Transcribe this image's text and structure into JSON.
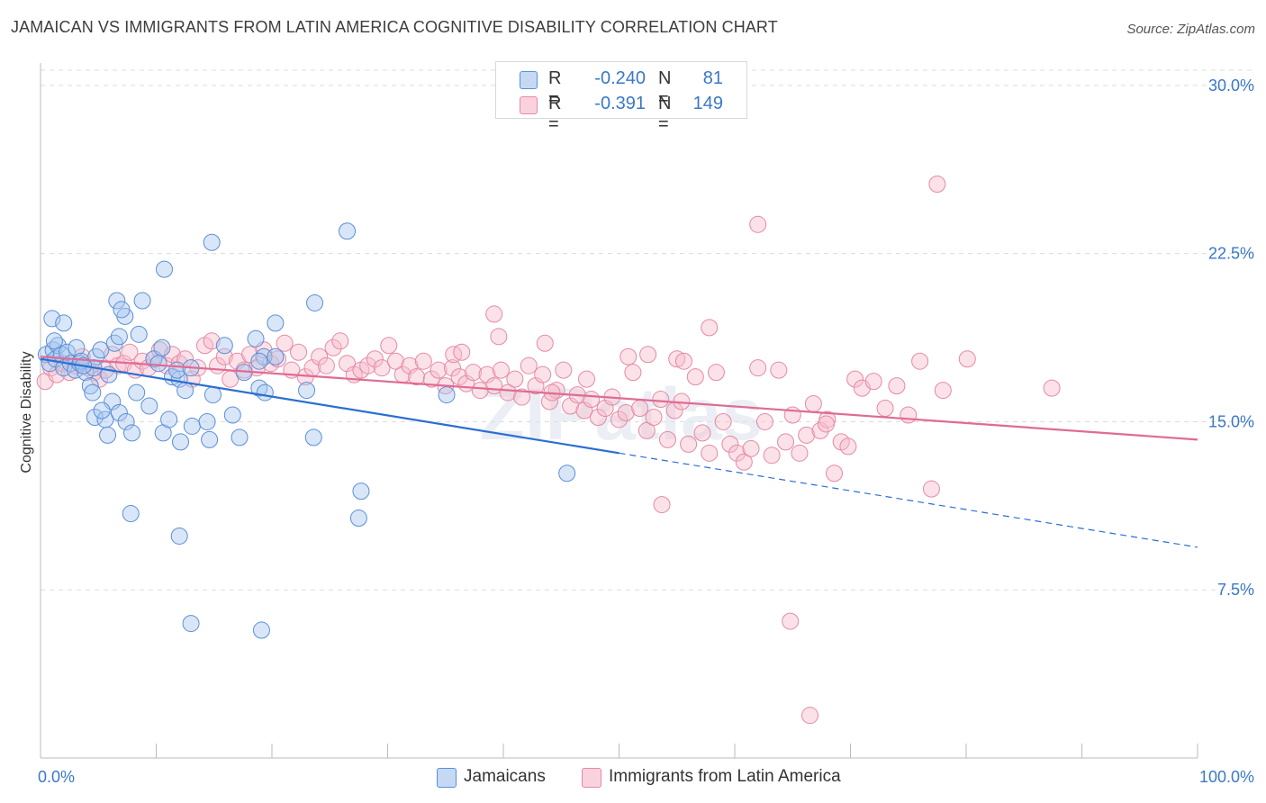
{
  "title": "JAMAICAN VS IMMIGRANTS FROM LATIN AMERICA COGNITIVE DISABILITY CORRELATION CHART",
  "source": "Source: ZipAtlas.com",
  "watermark": "ZIPatlas",
  "legend": {
    "series1": {
      "r_label": "R =",
      "r_value": "-0.240",
      "n_label": "N =",
      "n_value": "81"
    },
    "series2": {
      "r_label": "R =",
      "r_value": "-0.391",
      "n_label": "N =",
      "n_value": "149"
    }
  },
  "bottom_legend": {
    "series1": "Jamaicans",
    "series2": "Immigrants from Latin America"
  },
  "colors": {
    "blue_fill": "#a9c8ef",
    "blue_stroke": "#5b8fd6",
    "blue_line": "#2a6fd1",
    "pink_fill": "#f6bccd",
    "pink_stroke": "#e48aa6",
    "pink_line": "#e06b93",
    "tick": "#3a78c8",
    "grid": "#dcdcdc"
  },
  "chart_data": {
    "type": "scatter",
    "title": "JAMAICAN VS IMMIGRANTS FROM LATIN AMERICA COGNITIVE DISABILITY CORRELATION CHART",
    "xlabel": "",
    "ylabel": "Cognitive Disability",
    "xlim": [
      0,
      100
    ],
    "ylim": [
      0,
      31
    ],
    "x_tick_labels": [
      "0.0%",
      "100.0%"
    ],
    "y_ticks": [
      7.5,
      15.0,
      22.5,
      30.0
    ],
    "y_tick_labels": [
      "7.5%",
      "15.0%",
      "22.5%",
      "30.0%"
    ],
    "series": [
      {
        "name": "Jamaicans",
        "r": -0.24,
        "n": 81,
        "trend": {
          "x0": 0,
          "y0": 17.8,
          "x1": 50,
          "y1": 13.6,
          "dash_x1": 100,
          "dash_y1": 9.4
        },
        "points": [
          [
            0.5,
            18.0
          ],
          [
            0.8,
            17.6
          ],
          [
            1.0,
            19.6
          ],
          [
            1.1,
            18.2
          ],
          [
            1.3,
            17.8
          ],
          [
            1.5,
            18.4
          ],
          [
            1.8,
            18.0
          ],
          [
            2.0,
            17.4
          ],
          [
            2.3,
            18.1
          ],
          [
            2.6,
            17.6
          ],
          [
            2.0,
            19.4
          ],
          [
            1.2,
            18.6
          ],
          [
            3.0,
            17.3
          ],
          [
            3.4,
            17.6
          ],
          [
            3.9,
            17.2
          ],
          [
            4.3,
            16.6
          ],
          [
            4.5,
            16.3
          ],
          [
            4.8,
            17.9
          ],
          [
            5.2,
            18.2
          ],
          [
            4.6,
            17.4
          ],
          [
            5.9,
            17.1
          ],
          [
            3.1,
            18.3
          ],
          [
            3.5,
            17.7
          ],
          [
            6.4,
            18.5
          ],
          [
            6.8,
            18.8
          ],
          [
            7.3,
            19.7
          ],
          [
            6.6,
            20.4
          ],
          [
            7.0,
            20.0
          ],
          [
            8.5,
            18.9
          ],
          [
            8.8,
            20.4
          ],
          [
            6.2,
            15.9
          ],
          [
            4.7,
            15.2
          ],
          [
            5.6,
            15.1
          ],
          [
            5.3,
            15.5
          ],
          [
            5.8,
            14.4
          ],
          [
            6.8,
            15.4
          ],
          [
            7.4,
            15.0
          ],
          [
            7.9,
            14.5
          ],
          [
            8.3,
            16.3
          ],
          [
            9.4,
            15.7
          ],
          [
            9.8,
            17.8
          ],
          [
            10.2,
            17.6
          ],
          [
            10.5,
            18.3
          ],
          [
            11.4,
            17.0
          ],
          [
            12.0,
            16.9
          ],
          [
            11.8,
            17.3
          ],
          [
            12.5,
            16.4
          ],
          [
            13.0,
            17.4
          ],
          [
            10.6,
            14.5
          ],
          [
            11.1,
            15.1
          ],
          [
            12.1,
            14.1
          ],
          [
            13.1,
            14.8
          ],
          [
            14.4,
            15.0
          ],
          [
            14.6,
            14.2
          ],
          [
            14.9,
            16.2
          ],
          [
            15.9,
            18.4
          ],
          [
            16.6,
            15.3
          ],
          [
            17.2,
            14.3
          ],
          [
            17.6,
            17.2
          ],
          [
            18.6,
            18.7
          ],
          [
            18.9,
            16.5
          ],
          [
            19.4,
            16.3
          ],
          [
            19.3,
            17.9
          ],
          [
            20.3,
            19.4
          ],
          [
            20.3,
            17.9
          ],
          [
            23.0,
            16.4
          ],
          [
            23.7,
            20.3
          ],
          [
            23.6,
            14.3
          ],
          [
            26.5,
            23.5
          ],
          [
            27.5,
            10.7
          ],
          [
            27.7,
            11.9
          ],
          [
            35.1,
            16.2
          ],
          [
            45.5,
            12.7
          ],
          [
            14.8,
            23.0
          ],
          [
            10.7,
            21.8
          ],
          [
            7.8,
            10.9
          ],
          [
            12.0,
            9.9
          ],
          [
            13.0,
            6.0
          ],
          [
            19.1,
            5.7
          ],
          [
            18.9,
            17.7
          ],
          [
            3.7,
            17.5
          ]
        ]
      },
      {
        "name": "Immigrants from Latin America",
        "r": -0.391,
        "n": 149,
        "trend": {
          "x0": 0,
          "y0": 17.9,
          "x1": 100,
          "y1": 14.2
        },
        "points": [
          [
            0.4,
            16.8
          ],
          [
            0.9,
            17.4
          ],
          [
            1.4,
            17.1
          ],
          [
            1.9,
            17.6
          ],
          [
            2.5,
            17.2
          ],
          [
            3.0,
            17.5
          ],
          [
            3.6,
            17.9
          ],
          [
            4.1,
            17.4
          ],
          [
            4.6,
            17.2
          ],
          [
            5.1,
            16.9
          ],
          [
            5.6,
            17.3
          ],
          [
            6.2,
            18.0
          ],
          [
            6.7,
            17.5
          ],
          [
            7.2,
            17.6
          ],
          [
            7.7,
            18.1
          ],
          [
            8.2,
            17.3
          ],
          [
            8.8,
            17.7
          ],
          [
            9.3,
            17.4
          ],
          [
            9.8,
            17.8
          ],
          [
            10.3,
            18.2
          ],
          [
            10.9,
            17.5
          ],
          [
            11.4,
            18.0
          ],
          [
            12.0,
            17.6
          ],
          [
            12.5,
            17.8
          ],
          [
            13.1,
            16.9
          ],
          [
            13.6,
            17.4
          ],
          [
            14.2,
            18.4
          ],
          [
            14.8,
            18.6
          ],
          [
            15.3,
            17.5
          ],
          [
            15.9,
            17.9
          ],
          [
            16.4,
            16.9
          ],
          [
            17.0,
            17.7
          ],
          [
            17.6,
            17.3
          ],
          [
            18.1,
            18.0
          ],
          [
            18.7,
            17.4
          ],
          [
            19.3,
            18.2
          ],
          [
            19.9,
            17.6
          ],
          [
            20.5,
            17.8
          ],
          [
            21.1,
            18.5
          ],
          [
            21.7,
            17.3
          ],
          [
            22.3,
            18.1
          ],
          [
            22.9,
            17.0
          ],
          [
            23.5,
            17.4
          ],
          [
            24.1,
            17.9
          ],
          [
            24.7,
            17.5
          ],
          [
            25.3,
            18.3
          ],
          [
            25.9,
            18.6
          ],
          [
            26.5,
            17.6
          ],
          [
            27.1,
            17.1
          ],
          [
            27.7,
            17.3
          ],
          [
            28.3,
            17.5
          ],
          [
            28.9,
            17.8
          ],
          [
            29.5,
            17.4
          ],
          [
            30.1,
            18.4
          ],
          [
            30.7,
            17.7
          ],
          [
            31.3,
            17.1
          ],
          [
            31.9,
            17.5
          ],
          [
            32.5,
            17.0
          ],
          [
            33.1,
            17.7
          ],
          [
            33.8,
            16.9
          ],
          [
            34.4,
            17.3
          ],
          [
            35.0,
            16.6
          ],
          [
            35.6,
            17.4
          ],
          [
            36.2,
            17.0
          ],
          [
            36.8,
            16.7
          ],
          [
            37.4,
            17.2
          ],
          [
            38.0,
            16.4
          ],
          [
            38.6,
            17.1
          ],
          [
            39.2,
            16.6
          ],
          [
            39.8,
            17.3
          ],
          [
            40.4,
            16.3
          ],
          [
            41.0,
            16.9
          ],
          [
            41.6,
            16.1
          ],
          [
            42.2,
            17.5
          ],
          [
            42.8,
            16.6
          ],
          [
            43.4,
            17.1
          ],
          [
            44.0,
            15.9
          ],
          [
            44.6,
            16.4
          ],
          [
            45.2,
            17.3
          ],
          [
            45.8,
            15.7
          ],
          [
            46.4,
            16.2
          ],
          [
            47.0,
            15.5
          ],
          [
            47.6,
            16.0
          ],
          [
            48.2,
            15.2
          ],
          [
            48.8,
            15.6
          ],
          [
            49.4,
            16.1
          ],
          [
            50.0,
            15.1
          ],
          [
            50.6,
            15.4
          ],
          [
            51.2,
            17.2
          ],
          [
            51.8,
            15.6
          ],
          [
            52.4,
            14.6
          ],
          [
            53.0,
            15.2
          ],
          [
            53.6,
            16.0
          ],
          [
            54.2,
            14.2
          ],
          [
            54.8,
            15.5
          ],
          [
            55.4,
            15.9
          ],
          [
            56.0,
            14.0
          ],
          [
            56.6,
            17.0
          ],
          [
            57.2,
            14.5
          ],
          [
            57.8,
            13.6
          ],
          [
            58.4,
            17.2
          ],
          [
            59.0,
            15.0
          ],
          [
            59.6,
            14.0
          ],
          [
            60.2,
            13.6
          ],
          [
            60.8,
            13.2
          ],
          [
            61.4,
            13.8
          ],
          [
            62.0,
            17.4
          ],
          [
            62.6,
            15.0
          ],
          [
            63.2,
            13.5
          ],
          [
            63.8,
            17.3
          ],
          [
            64.4,
            14.1
          ],
          [
            65.0,
            15.3
          ],
          [
            65.6,
            13.6
          ],
          [
            66.2,
            14.4
          ],
          [
            66.8,
            15.8
          ],
          [
            67.4,
            14.6
          ],
          [
            68.0,
            15.1
          ],
          [
            68.6,
            12.7
          ],
          [
            69.2,
            14.1
          ],
          [
            69.8,
            13.9
          ],
          [
            70.4,
            16.9
          ],
          [
            71.0,
            16.5
          ],
          [
            72.0,
            16.8
          ],
          [
            73.0,
            15.6
          ],
          [
            74.0,
            16.6
          ],
          [
            75.0,
            15.3
          ],
          [
            76.0,
            17.7
          ],
          [
            77.0,
            12.0
          ],
          [
            78.0,
            16.4
          ],
          [
            55.0,
            17.8
          ],
          [
            57.8,
            19.2
          ],
          [
            39.2,
            19.8
          ],
          [
            39.6,
            18.8
          ],
          [
            43.6,
            18.5
          ],
          [
            52.5,
            18.0
          ],
          [
            47.2,
            16.9
          ],
          [
            50.8,
            17.9
          ],
          [
            62.0,
            23.8
          ],
          [
            77.5,
            25.6
          ],
          [
            80.1,
            17.8
          ],
          [
            87.4,
            16.5
          ],
          [
            64.8,
            6.1
          ],
          [
            66.5,
            1.9
          ],
          [
            53.7,
            11.3
          ],
          [
            55.6,
            17.7
          ],
          [
            44.2,
            16.3
          ],
          [
            67.9,
            14.9
          ],
          [
            35.7,
            18.0
          ],
          [
            36.4,
            18.1
          ]
        ]
      }
    ]
  }
}
